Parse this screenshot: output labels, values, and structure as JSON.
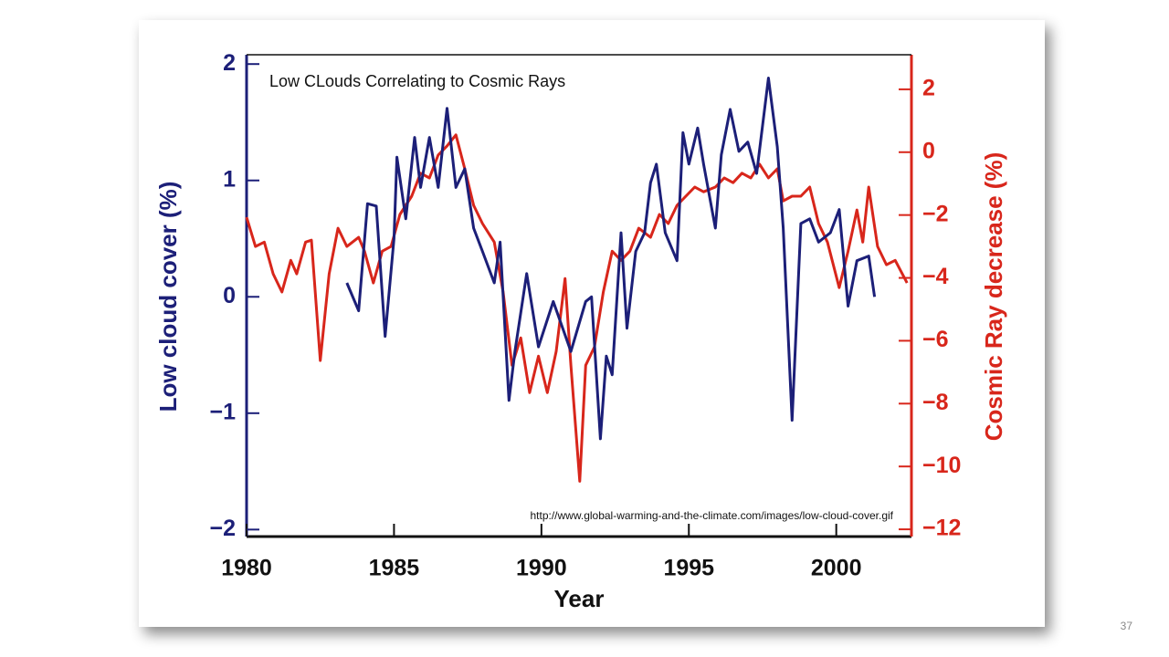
{
  "chart_data": {
    "type": "line",
    "title": "Low CLouds Correlating to Cosmic Rays",
    "source": "http://www.global-warming-and-the-climate.com/images/low-cloud-cover.gif",
    "xlabel": "Year",
    "ylabel": "Low cloud cover (%)",
    "y2label": "Cosmic Ray decrease (%)",
    "page_number": "37",
    "xlim": [
      1980,
      2002.55
    ],
    "xticks": [
      1980,
      1985,
      1990,
      1995,
      2000
    ],
    "ylim": [
      -2.06,
      2.08
    ],
    "yticks": [
      {
        "value": -2,
        "label": "−2"
      },
      {
        "value": -1,
        "label": "−1"
      },
      0,
      1,
      2
    ],
    "y2lim": [
      -12.23,
      3.1
    ],
    "y2ticks": [
      {
        "value": -12,
        "label": "−12"
      },
      {
        "value": -10,
        "label": "−10"
      },
      {
        "value": -8,
        "label": "−8"
      },
      {
        "value": -6,
        "label": "−6"
      },
      {
        "value": -4,
        "label": "−4"
      },
      {
        "value": -2,
        "label": "−2"
      },
      0,
      2
    ],
    "series": [
      {
        "color": "#1c1f78",
        "axis": "y",
        "x": [
          1983.4,
          1983.8,
          1984.1,
          1984.4,
          1984.7,
          1985.0,
          1985.1,
          1985.4,
          1985.7,
          1985.9,
          1986.2,
          1986.5,
          1986.8,
          1987.1,
          1987.4,
          1987.7,
          1988.0,
          1988.4,
          1988.6,
          1988.9,
          1989.1,
          1989.5,
          1989.9,
          1990.4,
          1991.0,
          1991.5,
          1991.7,
          1992.0,
          1992.2,
          1992.4,
          1992.7,
          1992.9,
          1993.2,
          1993.5,
          1993.7,
          1993.9,
          1994.2,
          1994.6,
          1994.8,
          1995.0,
          1995.3,
          1995.5,
          1995.9,
          1996.1,
          1996.4,
          1996.7,
          1997.0,
          1997.3,
          1997.7,
          1998.0,
          1998.2,
          1998.5,
          1998.8,
          1999.1,
          1999.4,
          1999.8,
          2000.1,
          2000.4,
          2000.7,
          2001.1,
          2001.3
        ],
        "values": [
          0.12,
          -0.12,
          0.8,
          0.78,
          -0.34,
          0.5,
          1.2,
          0.67,
          1.37,
          0.94,
          1.37,
          0.94,
          1.62,
          0.94,
          1.1,
          0.59,
          0.39,
          0.12,
          0.47,
          -0.89,
          -0.47,
          0.2,
          -0.43,
          -0.04,
          -0.47,
          -0.04,
          0,
          -1.22,
          -0.51,
          -0.67,
          0.55,
          -0.27,
          0.39,
          0.55,
          0.98,
          1.14,
          0.55,
          0.31,
          1.41,
          1.14,
          1.45,
          1.14,
          0.59,
          1.22,
          1.61,
          1.25,
          1.33,
          1.06,
          1.88,
          1.29,
          0.59,
          -1.06,
          0.63,
          0.67,
          0.47,
          0.55,
          0.75,
          -0.08,
          0.31,
          0.35,
          0
        ]
      },
      {
        "color": "#d8261b",
        "axis": "y2",
        "x": [
          1980.0,
          1980.3,
          1980.6,
          1980.9,
          1981.2,
          1981.5,
          1981.7,
          1982.0,
          1982.2,
          1982.5,
          1982.8,
          1983.1,
          1983.4,
          1983.8,
          1984.0,
          1984.3,
          1984.6,
          1984.9,
          1985.2,
          1985.6,
          1985.9,
          1986.2,
          1986.5,
          1986.8,
          1987.1,
          1987.4,
          1987.7,
          1988.0,
          1988.4,
          1988.7,
          1989.0,
          1989.3,
          1989.6,
          1989.9,
          1990.2,
          1990.5,
          1990.8,
          1991.0,
          1991.3,
          1991.5,
          1991.8,
          1992.1,
          1992.4,
          1992.7,
          1993.0,
          1993.3,
          1993.7,
          1994.0,
          1994.3,
          1994.6,
          1994.9,
          1995.2,
          1995.5,
          1995.9,
          1996.2,
          1996.5,
          1996.8,
          1997.1,
          1997.4,
          1997.7,
          1998.0,
          1998.2,
          1998.5,
          1998.8,
          1999.1,
          1999.4,
          1999.7,
          2000.1,
          2000.4,
          2000.7,
          2000.9,
          2001.1,
          2001.4,
          2001.7,
          2002.0,
          2002.4
        ],
        "values": [
          -2.07,
          -3.0,
          -2.86,
          -3.87,
          -4.45,
          -3.44,
          -3.87,
          -2.86,
          -2.8,
          -6.63,
          -3.87,
          -2.42,
          -3.0,
          -2.71,
          -3.15,
          -4.16,
          -3.15,
          -3.0,
          -1.98,
          -1.4,
          -0.67,
          -0.82,
          -0.09,
          0.2,
          0.55,
          -0.53,
          -1.69,
          -2.27,
          -2.86,
          -4.45,
          -6.78,
          -5.91,
          -7.65,
          -6.49,
          -7.65,
          -6.34,
          -4.02,
          -6.78,
          -10.47,
          -6.78,
          -6.2,
          -4.45,
          -3.15,
          -3.44,
          -3.15,
          -2.42,
          -2.71,
          -1.98,
          -2.27,
          -1.69,
          -1.4,
          -1.11,
          -1.26,
          -1.11,
          -0.82,
          -0.97,
          -0.67,
          -0.82,
          -0.38,
          -0.82,
          -0.53,
          -1.55,
          -1.4,
          -1.4,
          -1.11,
          -2.27,
          -2.86,
          -4.31,
          -3.15,
          -1.84,
          -2.86,
          -1.11,
          -3.0,
          -3.58,
          -3.44,
          -4.16
        ]
      }
    ]
  }
}
